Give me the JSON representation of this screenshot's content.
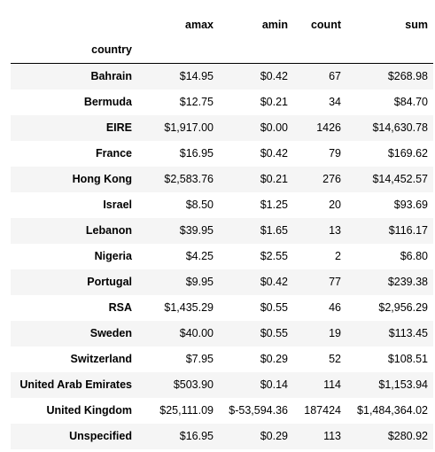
{
  "table": {
    "columns": [
      "amax",
      "amin",
      "count",
      "sum"
    ],
    "index_name": "country",
    "rows": [
      {
        "country": "Bahrain",
        "amax": "$14.95",
        "amin": "$0.42",
        "count": "67",
        "sum": "$268.98"
      },
      {
        "country": "Bermuda",
        "amax": "$12.75",
        "amin": "$0.21",
        "count": "34",
        "sum": "$84.70"
      },
      {
        "country": "EIRE",
        "amax": "$1,917.00",
        "amin": "$0.00",
        "count": "1426",
        "sum": "$14,630.78"
      },
      {
        "country": "France",
        "amax": "$16.95",
        "amin": "$0.42",
        "count": "79",
        "sum": "$169.62"
      },
      {
        "country": "Hong Kong",
        "amax": "$2,583.76",
        "amin": "$0.21",
        "count": "276",
        "sum": "$14,452.57"
      },
      {
        "country": "Israel",
        "amax": "$8.50",
        "amin": "$1.25",
        "count": "20",
        "sum": "$93.69"
      },
      {
        "country": "Lebanon",
        "amax": "$39.95",
        "amin": "$1.65",
        "count": "13",
        "sum": "$116.17"
      },
      {
        "country": "Nigeria",
        "amax": "$4.25",
        "amin": "$2.55",
        "count": "2",
        "sum": "$6.80"
      },
      {
        "country": "Portugal",
        "amax": "$9.95",
        "amin": "$0.42",
        "count": "77",
        "sum": "$239.38"
      },
      {
        "country": "RSA",
        "amax": "$1,435.29",
        "amin": "$0.55",
        "count": "46",
        "sum": "$2,956.29"
      },
      {
        "country": "Sweden",
        "amax": "$40.00",
        "amin": "$0.55",
        "count": "19",
        "sum": "$113.45"
      },
      {
        "country": "Switzerland",
        "amax": "$7.95",
        "amin": "$0.29",
        "count": "52",
        "sum": "$108.51"
      },
      {
        "country": "United Arab Emirates",
        "amax": "$503.90",
        "amin": "$0.14",
        "count": "114",
        "sum": "$1,153.94"
      },
      {
        "country": "United Kingdom",
        "amax": "$25,111.09",
        "amin": "$-53,594.36",
        "count": "187424",
        "sum": "$1,484,364.02"
      },
      {
        "country": "Unspecified",
        "amax": "$16.95",
        "amin": "$0.29",
        "count": "113",
        "sum": "$280.92"
      }
    ]
  },
  "colors": {
    "stripe": "#f5f5f5",
    "header_rule": "#000000"
  }
}
